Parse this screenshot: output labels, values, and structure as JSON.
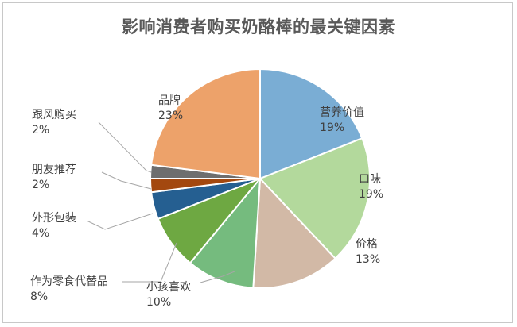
{
  "chart_data": {
    "type": "pie",
    "title": "影响消费者购买奶酪棒的最关键因素",
    "start_angle_deg": 0,
    "direction": "clockwise",
    "slices": [
      {
        "label": "营养价值",
        "value": 19,
        "percent_label": "19%",
        "color": "#7aadd4"
      },
      {
        "label": "口味",
        "value": 19,
        "percent_label": "19%",
        "color": "#b3d99c"
      },
      {
        "label": "价格",
        "value": 13,
        "percent_label": "13%",
        "color": "#d2b9a6"
      },
      {
        "label": "小孩喜欢",
        "value": 10,
        "percent_label": "10%",
        "color": "#75bb7e"
      },
      {
        "label": "作为零食代替品",
        "value": 8,
        "percent_label": "8%",
        "color": "#6ea842"
      },
      {
        "label": "外形包装",
        "value": 4,
        "percent_label": "4%",
        "color": "#255f91"
      },
      {
        "label": "朋友推荐",
        "value": 2,
        "percent_label": "2%",
        "color": "#a3480f"
      },
      {
        "label": "跟风购买",
        "value": 2,
        "percent_label": "2%",
        "color": "#6e6e6e"
      },
      {
        "label": "品牌",
        "value": 23,
        "percent_label": "23%",
        "color": "#eda26a"
      }
    ]
  }
}
